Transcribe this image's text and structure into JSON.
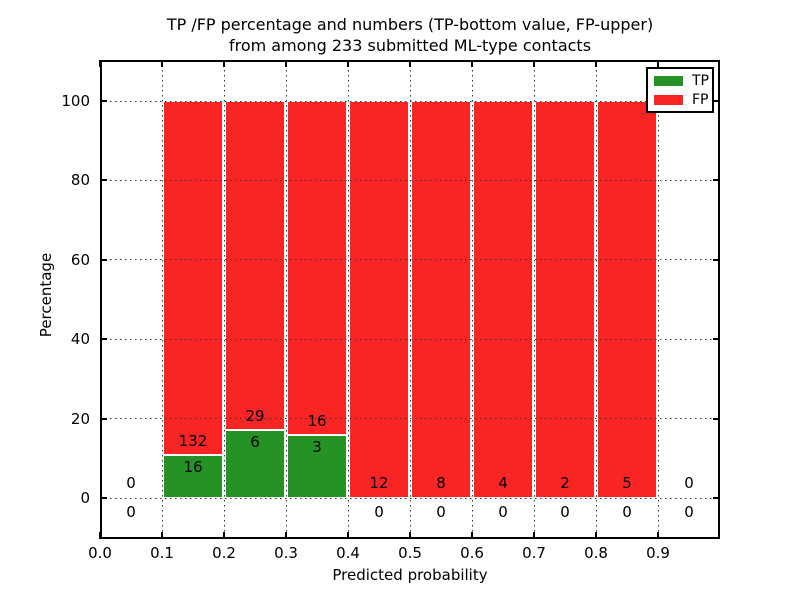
{
  "figure": {
    "title_line1": "TP /FP percentage and numbers (TP-bottom value, FP-upper)",
    "title_line2": "from among 233 submitted ML-type contacts",
    "xlabel": "Predicted probability",
    "ylabel": "Percentage"
  },
  "legend": {
    "tp": {
      "label": "TP",
      "color": "#249324"
    },
    "fp": {
      "label": "FP",
      "color": "#f92525"
    }
  },
  "colors": {
    "tp_green": "#249324",
    "fp_red": "#f92525",
    "grid": "#333333",
    "frame": "#000000",
    "background": "#ffffff"
  },
  "chart_data": {
    "type": "bar",
    "stacked": true,
    "normalized_to_percent": true,
    "title": "TP /FP percentage and numbers (TP-bottom value, FP-upper) from among 233 submitted ML-type contacts",
    "xlabel": "Predicted probability",
    "ylabel": "Percentage",
    "total_contacts": 233,
    "grid": "dotted",
    "legend_position": "upper right",
    "xlim": [
      0.0,
      1.0
    ],
    "ylim": [
      0,
      100
    ],
    "xticks": [
      "0.0",
      "0.1",
      "0.2",
      "0.3",
      "0.4",
      "0.5",
      "0.6",
      "0.7",
      "0.8",
      "0.9"
    ],
    "yticks": [
      "0",
      "20",
      "40",
      "60",
      "80",
      "100"
    ],
    "categories": [
      "0.0-0.1",
      "0.1-0.2",
      "0.2-0.3",
      "0.3-0.4",
      "0.4-0.5",
      "0.5-0.6",
      "0.6-0.7",
      "0.7-0.8",
      "0.8-0.9",
      "0.9-1.0"
    ],
    "series": [
      {
        "name": "TP",
        "color": "#249324",
        "counts": [
          0,
          16,
          6,
          3,
          0,
          0,
          0,
          0,
          0,
          0
        ]
      },
      {
        "name": "FP",
        "color": "#f92525",
        "counts": [
          0,
          132,
          29,
          16,
          12,
          8,
          4,
          2,
          5,
          0
        ]
      }
    ],
    "bins": [
      {
        "x0": 0.0,
        "x1": 0.1,
        "tp": 0,
        "fp": 0,
        "tp_percent": 0
      },
      {
        "x0": 0.1,
        "x1": 0.2,
        "tp": 16,
        "fp": 132,
        "tp_percent": 10.8
      },
      {
        "x0": 0.2,
        "x1": 0.3,
        "tp": 6,
        "fp": 29,
        "tp_percent": 17.1
      },
      {
        "x0": 0.3,
        "x1": 0.4,
        "tp": 3,
        "fp": 16,
        "tp_percent": 15.8
      },
      {
        "x0": 0.4,
        "x1": 0.5,
        "tp": 0,
        "fp": 12,
        "tp_percent": 0
      },
      {
        "x0": 0.5,
        "x1": 0.6,
        "tp": 0,
        "fp": 8,
        "tp_percent": 0
      },
      {
        "x0": 0.6,
        "x1": 0.7,
        "tp": 0,
        "fp": 4,
        "tp_percent": 0
      },
      {
        "x0": 0.7,
        "x1": 0.8,
        "tp": 0,
        "fp": 2,
        "tp_percent": 0
      },
      {
        "x0": 0.8,
        "x1": 0.9,
        "tp": 0,
        "fp": 5,
        "tp_percent": 0
      },
      {
        "x0": 0.9,
        "x1": 1.0,
        "tp": 0,
        "fp": 0,
        "tp_percent": 0
      }
    ]
  }
}
